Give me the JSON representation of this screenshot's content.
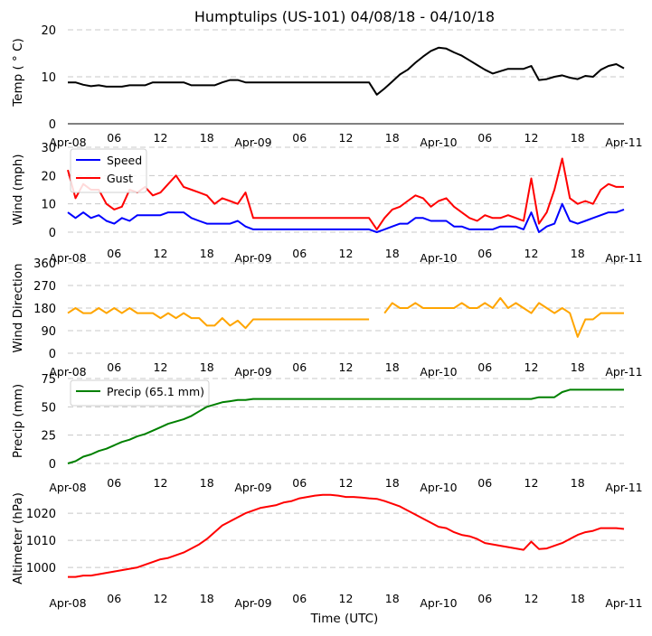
{
  "figure": {
    "title": "Humptulips (US-101) 04/08/18 - 04/10/18",
    "xlabel": "Time (UTC)",
    "x_units": "hours since Apr-08 00 UTC",
    "x_ticks": [
      0,
      6,
      12,
      18,
      24,
      30,
      36,
      42,
      48,
      54,
      60,
      66,
      72
    ],
    "x_tick_labels": [
      "Apr-08",
      "06",
      "12",
      "18",
      "Apr-09",
      "06",
      "12",
      "18",
      "Apr-10",
      "06",
      "12",
      "18",
      "Apr-11"
    ]
  },
  "chart_data": [
    {
      "type": "line",
      "ylabel": "Temp ( ° C)",
      "ylim": [
        0,
        20
      ],
      "yticks": [
        0,
        10,
        20
      ],
      "grid": true,
      "series": [
        {
          "name": "Temp",
          "color": "#000000",
          "values": [
            8.8,
            8.8,
            8.3,
            8.0,
            8.2,
            7.9,
            7.9,
            7.9,
            8.2,
            8.2,
            8.2,
            8.8,
            8.8,
            8.8,
            8.8,
            8.8,
            8.2,
            8.2,
            8.2,
            8.2,
            8.8,
            9.3,
            9.3,
            8.8,
            8.8,
            8.8,
            8.8,
            8.8,
            8.8,
            8.8,
            8.8,
            8.8,
            8.8,
            8.8,
            8.8,
            8.8,
            8.8,
            8.8,
            8.8,
            8.8,
            6.2,
            7.5,
            9.0,
            10.5,
            11.5,
            13.0,
            14.3,
            15.5,
            16.2,
            16.0,
            15.2,
            14.5,
            13.5,
            12.5,
            11.5,
            10.7,
            11.2,
            11.7,
            11.7,
            11.7,
            12.3,
            9.3,
            9.5,
            10.0,
            10.3,
            9.8,
            9.5,
            10.2,
            10.0,
            11.5,
            12.3,
            12.7,
            11.8
          ]
        }
      ]
    },
    {
      "type": "line",
      "ylabel": "Wind (mph)",
      "ylim": [
        0,
        30
      ],
      "yticks": [
        0,
        10,
        20,
        30
      ],
      "grid": true,
      "legend": "top-left",
      "series": [
        {
          "name": "Speed",
          "color": "#0000ff",
          "values": [
            7,
            5,
            7,
            5,
            6,
            4,
            3,
            5,
            4,
            6,
            6,
            6,
            6,
            7,
            7,
            7,
            5,
            4,
            3,
            3,
            3,
            3,
            4,
            2,
            1,
            1,
            1,
            1,
            1,
            1,
            1,
            1,
            1,
            1,
            1,
            1,
            1,
            1,
            1,
            1,
            0,
            1,
            2,
            3,
            3,
            5,
            5,
            4,
            4,
            4,
            2,
            2,
            1,
            1,
            1,
            1,
            2,
            2,
            2,
            1,
            7,
            0,
            2,
            3,
            10,
            4,
            3,
            4,
            5,
            6,
            7,
            7,
            8
          ]
        },
        {
          "name": "Gust",
          "color": "#ff0000",
          "values": [
            22,
            12,
            17,
            15,
            15,
            10,
            8,
            9,
            15,
            14,
            16,
            13,
            14,
            17,
            20,
            16,
            15,
            14,
            13,
            10,
            12,
            11,
            10,
            14,
            5,
            5,
            5,
            5,
            5,
            5,
            5,
            5,
            5,
            5,
            5,
            5,
            5,
            5,
            5,
            5,
            1,
            5,
            8,
            9,
            11,
            13,
            12,
            9,
            11,
            12,
            9,
            7,
            5,
            4,
            6,
            5,
            5,
            6,
            5,
            4,
            19,
            3,
            7,
            15,
            26,
            12,
            10,
            11,
            10,
            15,
            17,
            16,
            16
          ]
        }
      ]
    },
    {
      "type": "line",
      "ylabel": "Wind Direction",
      "ylim": [
        0,
        360
      ],
      "yticks": [
        0,
        90,
        180,
        270,
        360
      ],
      "grid": true,
      "series": [
        {
          "name": "Direction",
          "color": "#ffa500",
          "values": [
            160,
            180,
            160,
            160,
            180,
            160,
            180,
            160,
            180,
            160,
            160,
            160,
            140,
            160,
            140,
            160,
            140,
            140,
            110,
            110,
            140,
            110,
            130,
            100,
            135,
            135,
            135,
            135,
            135,
            135,
            135,
            135,
            135,
            135,
            135,
            135,
            135,
            135,
            135,
            135,
            null,
            160,
            200,
            180,
            180,
            200,
            180,
            180,
            180,
            180,
            180,
            200,
            180,
            180,
            200,
            180,
            220,
            180,
            200,
            180,
            160,
            200,
            180,
            160,
            180,
            160,
            65,
            135,
            135,
            160,
            160,
            160,
            160
          ]
        }
      ]
    },
    {
      "type": "line",
      "ylabel": "Precip (mm)",
      "ylim": [
        0,
        75
      ],
      "yticks": [
        0,
        25,
        50,
        75
      ],
      "grid": true,
      "legend": "top-left",
      "series": [
        {
          "name": "Precip (65.1 mm)",
          "color": "#008000",
          "values": [
            0,
            2,
            6,
            8,
            11,
            13,
            16,
            19,
            21,
            24,
            26,
            29,
            32,
            35,
            37,
            39,
            42,
            46,
            50,
            52,
            54,
            55,
            56,
            56,
            57,
            57,
            57,
            57,
            57,
            57,
            57,
            57,
            57,
            57,
            57,
            57,
            57,
            57,
            57,
            57,
            57,
            57,
            57,
            57,
            57,
            57,
            57,
            57,
            57,
            57,
            57,
            57,
            57,
            57,
            57,
            57,
            57,
            57,
            57,
            57,
            57,
            58.5,
            58.5,
            58.5,
            63,
            65.1,
            65.1,
            65.1,
            65.1,
            65.1,
            65.1,
            65.1,
            65.1
          ]
        }
      ]
    },
    {
      "type": "line",
      "ylabel": "Altimeter (hPa)",
      "ylim": [
        992.7,
        1027.7
      ],
      "yticks": [
        1000,
        1010,
        1020
      ],
      "grid": true,
      "series": [
        {
          "name": "Altimeter",
          "color": "#ff0000",
          "values": [
            996.5,
            996.5,
            997,
            997,
            997.5,
            998,
            998.5,
            999,
            999.5,
            1000,
            1001,
            1002,
            1003,
            1003.5,
            1004.5,
            1005.5,
            1007,
            1008.5,
            1010.5,
            1013,
            1015.5,
            1017,
            1018.5,
            1020,
            1021,
            1022,
            1022.5,
            1023,
            1024,
            1024.5,
            1025.5,
            1026,
            1026.5,
            1026.8,
            1026.8,
            1026.5,
            1026,
            1026,
            1025.8,
            1025.5,
            1025.3,
            1024.5,
            1023.5,
            1022.5,
            1021,
            1019.5,
            1018,
            1016.5,
            1015,
            1014.5,
            1013,
            1012,
            1011.5,
            1010.5,
            1009,
            1008.5,
            1008,
            1007.5,
            1007,
            1006.5,
            1009.5,
            1006.8,
            1007,
            1008,
            1009,
            1010.5,
            1012,
            1013,
            1013.5,
            1014.5,
            1014.5,
            1014.5,
            1014.2
          ]
        }
      ]
    }
  ]
}
